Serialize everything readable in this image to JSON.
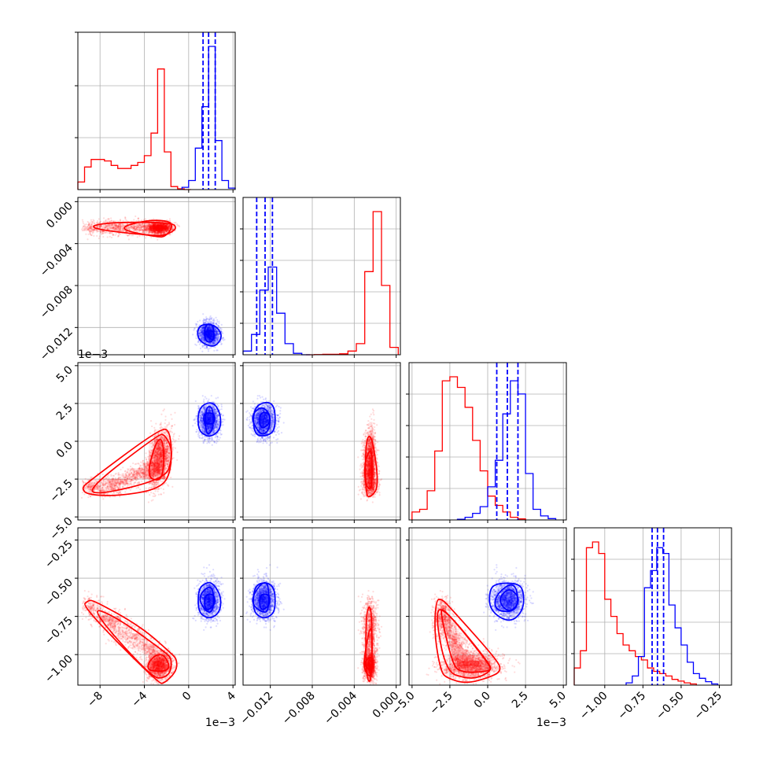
{
  "chart_data": {
    "type": "corner",
    "series": [
      {
        "name": "",
        "color": "#ff0000"
      },
      {
        "name": "",
        "color": "#0000ff"
      }
    ],
    "colors": {
      "red": "#ff0000",
      "blue": "#0000ff",
      "grid": "#b0b0b0"
    },
    "parameters": [
      {
        "range": [
          -10.0,
          4.2
        ],
        "ticks": [
          -8,
          -4,
          0,
          4
        ],
        "tick_labels": [
          "−8",
          "−4",
          "0",
          "4"
        ],
        "offset_label": "1e−3"
      },
      {
        "range": [
          -0.0146,
          0.0004
        ],
        "ticks": [
          0.0,
          -0.004,
          -0.008,
          -0.012
        ],
        "tick_labels": [
          "0.000",
          "−0.004",
          "−0.008",
          "−0.012"
        ],
        "x_tick_labels": [
          "−0.012",
          "−0.008",
          "−0.004",
          "0.000"
        ],
        "offset_label": ""
      },
      {
        "range": [
          -5.2,
          5.2
        ],
        "ticks": [
          5.0,
          2.5,
          0.0,
          -2.5,
          -5.0
        ],
        "tick_labels": [
          "5.0",
          "2.5",
          "0.0",
          "−2.5",
          "−5.0"
        ],
        "x_tick_labels": [
          "−5.0",
          "−2.5",
          "0.0",
          "2.5",
          "5.0"
        ],
        "offset_label": "1e−3"
      },
      {
        "range": [
          -1.2,
          -0.17
        ],
        "ticks": [
          -0.25,
          -0.5,
          -0.75,
          -1.0
        ],
        "tick_labels": [
          "−0.25",
          "−0.50",
          "−0.75",
          "−1.00"
        ],
        "x_tick_labels": [
          "−1.00",
          "−0.75",
          "−0.50",
          "−0.25"
        ],
        "offset_label": ""
      }
    ],
    "histograms": [
      {
        "param": 0,
        "red": {
          "edges": [
            -10.0,
            -9.4,
            -8.8,
            -8.2,
            -7.6,
            -7.0,
            -6.4,
            -5.8,
            -5.2,
            -4.6,
            -4.0,
            -3.4,
            -2.8,
            -2.2,
            -1.6,
            -1.0,
            -0.4,
            0.2
          ],
          "counts": [
            1,
            3,
            4,
            4,
            3.8,
            3.2,
            2.8,
            2.8,
            3.2,
            3.6,
            4.5,
            7.5,
            16,
            5,
            0.4,
            0.1,
            0
          ]
        },
        "blue": {
          "edges": [
            -0.6,
            0.0,
            0.6,
            1.2,
            1.8,
            2.4,
            3.0,
            3.6,
            4.2
          ],
          "counts": [
            0.3,
            1.2,
            5.5,
            11,
            19,
            6.5,
            1.2,
            0.2
          ]
        },
        "quantiles": [
          1.3,
          1.8,
          2.4
        ]
      },
      {
        "param": 1,
        "blue": {
          "edges": [
            -0.0146,
            -0.0138,
            -0.013,
            -0.0122,
            -0.0114,
            -0.0106,
            -0.0098,
            -0.009,
            -0.0082
          ],
          "counts": [
            0.4,
            2.2,
            7,
            9.5,
            4.5,
            1.2,
            0.15,
            0
          ]
        },
        "red": {
          "edges": [
            -0.0086,
            -0.0078,
            -0.007,
            -0.0062,
            -0.0054,
            -0.0046,
            -0.0038,
            -0.003,
            -0.0022,
            -0.0014,
            -0.0006,
            0.0002
          ],
          "counts": [
            0,
            0.02,
            0.05,
            0.05,
            0.1,
            0.4,
            1.2,
            9,
            15.5,
            7.5,
            0.8
          ]
        },
        "quantiles": [
          -0.0133,
          -0.0125,
          -0.0118
        ]
      },
      {
        "param": 2,
        "red": {
          "edges": [
            -5.0,
            -4.5,
            -4.0,
            -3.5,
            -3.0,
            -2.5,
            -2.0,
            -1.5,
            -1.0,
            -0.5,
            0.0,
            0.5,
            1.0,
            1.5,
            2.0,
            2.5
          ],
          "counts": [
            0.6,
            0.8,
            2.2,
            5.2,
            10.5,
            10.8,
            10,
            8.5,
            6,
            3.7,
            1.8,
            1.1,
            0.6,
            0.2,
            0.08
          ]
        },
        "blue": {
          "edges": [
            -2.0,
            -1.5,
            -1.0,
            -0.5,
            0.0,
            0.5,
            1.0,
            1.5,
            2.0,
            2.5,
            3.0,
            3.5,
            4.0,
            4.5
          ],
          "counts": [
            0.05,
            0.2,
            0.5,
            1.0,
            2.5,
            4.5,
            8,
            10.5,
            9.5,
            3.5,
            0.8,
            0.3,
            0.1
          ]
        },
        "quantiles": [
          0.6,
          1.3,
          2.0
        ]
      },
      {
        "param": 3,
        "red": {
          "edges": [
            -1.2,
            -1.16,
            -1.12,
            -1.08,
            -1.04,
            -1.0,
            -0.96,
            -0.92,
            -0.88,
            -0.84,
            -0.8,
            -0.76,
            -0.72,
            -0.68,
            -0.64,
            -0.6,
            -0.56,
            -0.52,
            -0.48,
            -0.44,
            -0.4
          ],
          "counts": [
            1.5,
            3,
            12,
            12.5,
            11.5,
            7.5,
            6,
            4.5,
            3.5,
            3,
            2.5,
            2.2,
            1.5,
            1.2,
            1.0,
            0.8,
            0.5,
            0.35,
            0.2,
            0.1
          ]
        },
        "blue": {
          "edges": [
            -0.86,
            -0.82,
            -0.78,
            -0.74,
            -0.7,
            -0.66,
            -0.62,
            -0.58,
            -0.54,
            -0.5,
            -0.46,
            -0.42,
            -0.38,
            -0.34,
            -0.3,
            -0.26
          ],
          "counts": [
            0.2,
            0.8,
            2.5,
            8.5,
            10,
            12,
            11.5,
            7,
            5,
            3.5,
            2,
            1,
            0.6,
            0.3,
            0.1
          ]
        },
        "quantiles": [
          -0.69,
          -0.655,
          -0.615
        ]
      }
    ],
    "scatter_panels": [
      {
        "x_param": 0,
        "y_param": 1
      },
      {
        "x_param": 0,
        "y_param": 2
      },
      {
        "x_param": 1,
        "y_param": 2
      },
      {
        "x_param": 0,
        "y_param": 3
      },
      {
        "x_param": 1,
        "y_param": 3
      },
      {
        "x_param": 2,
        "y_param": 3
      }
    ],
    "grid": true
  }
}
